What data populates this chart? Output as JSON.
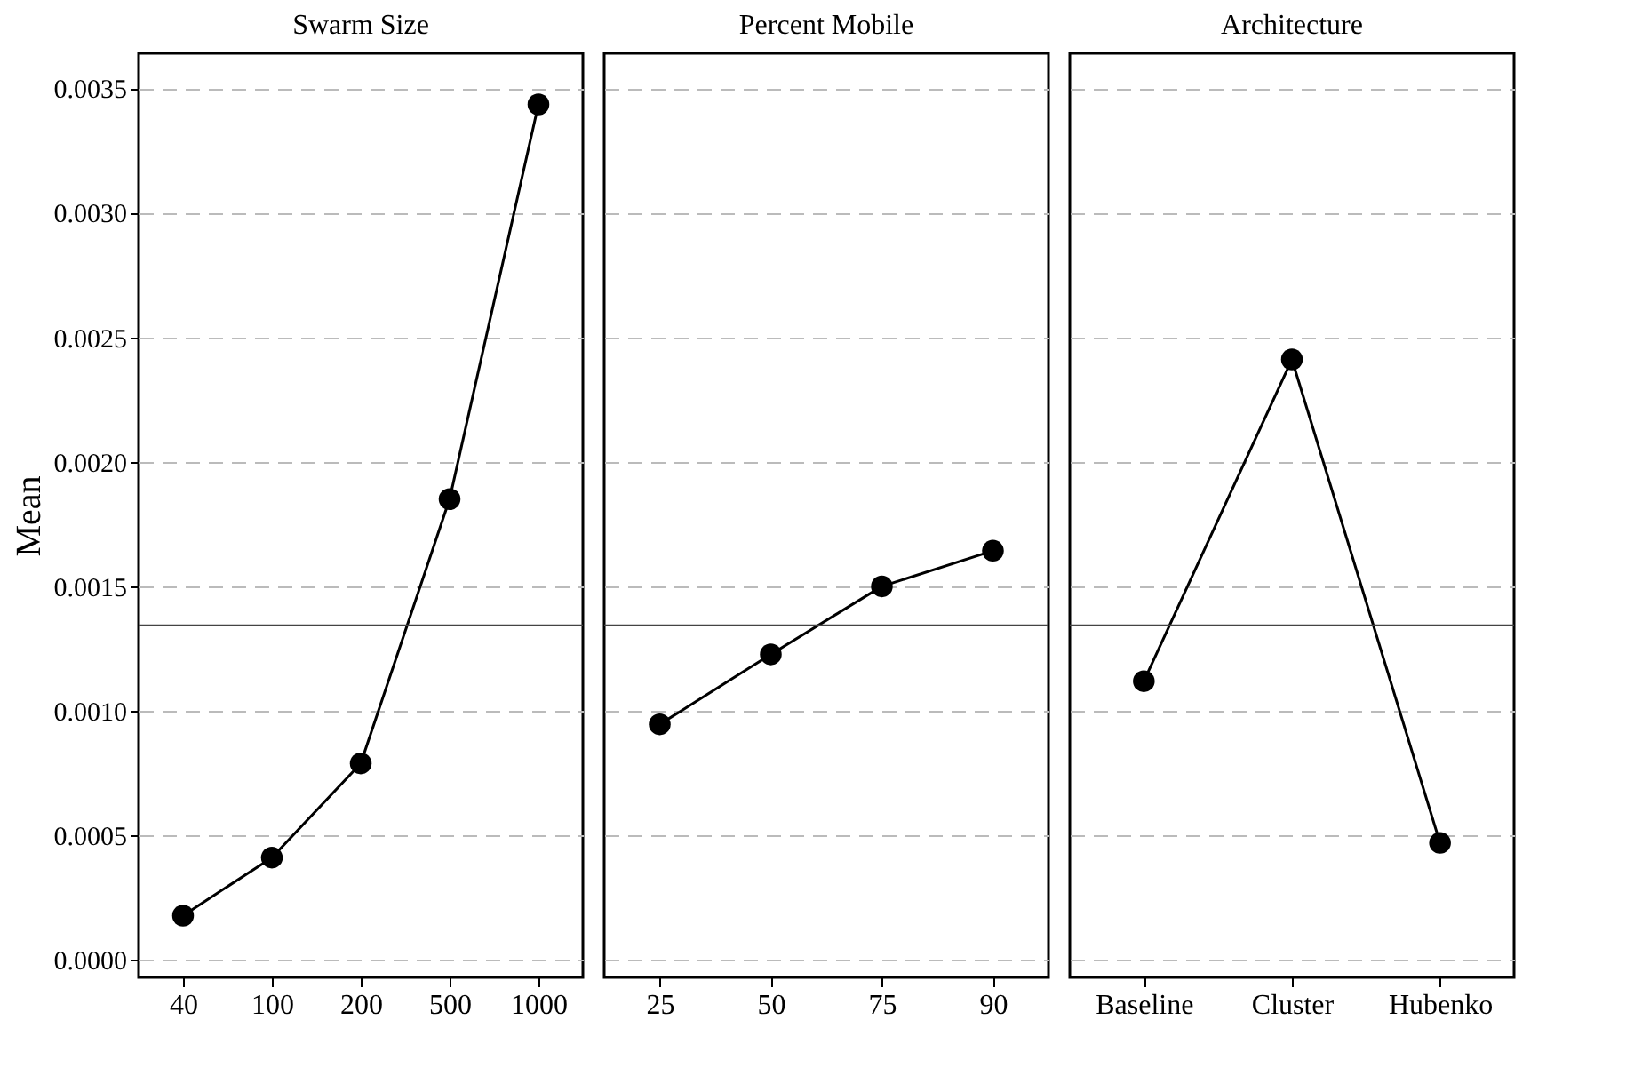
{
  "chart_data": [
    {
      "type": "line",
      "title": "Swarm Size",
      "ylabel": "Mean",
      "categories": [
        "40",
        "100",
        "200",
        "500",
        "1000"
      ],
      "series": [
        {
          "color": "#000000",
          "values": [
            0.000178,
            0.000411,
            0.000789,
            0.00185,
            0.003435
          ]
        }
      ],
      "ylim": [
        -7e-05,
        0.00364
      ],
      "yticks": [
        {
          "value": 0,
          "label": "0.0000"
        },
        {
          "value": 0.0005,
          "label": "0.0005"
        },
        {
          "value": 0.001,
          "label": "0.0010"
        },
        {
          "value": 0.0015,
          "label": "0.0015"
        },
        {
          "value": 0.002,
          "label": "0.0020"
        },
        {
          "value": 0.0025,
          "label": "0.0025"
        },
        {
          "value": 0.003,
          "label": "0.0030"
        },
        {
          "value": 0.0035,
          "label": "0.0035"
        }
      ],
      "ref_lines": [
        {
          "axis": "y",
          "value": 0.001343,
          "color": "#444444"
        }
      ],
      "grid": "y",
      "marker": "circle",
      "line_style": "solid"
    },
    {
      "type": "line",
      "title": "Percent Mobile",
      "categories": [
        "25",
        "50",
        "75",
        "90"
      ],
      "series": [
        {
          "color": "#000000",
          "values": [
            0.000946,
            0.001227,
            0.0015,
            0.001643
          ]
        }
      ],
      "ylim": [
        -7e-05,
        0.00364
      ],
      "yticks": [
        {
          "value": 0,
          "label": null
        },
        {
          "value": 0.0005,
          "label": null
        },
        {
          "value": 0.001,
          "label": null
        },
        {
          "value": 0.0015,
          "label": null
        },
        {
          "value": 0.002,
          "label": null
        },
        {
          "value": 0.0025,
          "label": null
        },
        {
          "value": 0.003,
          "label": null
        },
        {
          "value": 0.0035,
          "label": null
        }
      ],
      "ref_lines": [
        {
          "axis": "y",
          "value": 0.001343,
          "color": "#444444"
        }
      ],
      "grid": "y",
      "marker": "circle",
      "line_style": "solid",
      "tick_labels": "x"
    },
    {
      "type": "line",
      "title": "Architecture",
      "categories": [
        "Baseline",
        "Cluster",
        "Hubenko"
      ],
      "series": [
        {
          "color": "#000000",
          "values": [
            0.001119,
            0.002411,
            0.00047
          ]
        }
      ],
      "ylim": [
        -7e-05,
        0.00364
      ],
      "yticks": [
        {
          "value": 0,
          "label": null
        },
        {
          "value": 0.0005,
          "label": null
        },
        {
          "value": 0.001,
          "label": null
        },
        {
          "value": 0.0015,
          "label": null
        },
        {
          "value": 0.002,
          "label": null
        },
        {
          "value": 0.0025,
          "label": null
        },
        {
          "value": 0.003,
          "label": null
        },
        {
          "value": 0.0035,
          "label": null
        }
      ],
      "ref_lines": [
        {
          "axis": "y",
          "value": 0.001343,
          "color": "#444444"
        }
      ],
      "grid": "y",
      "marker": "circle",
      "line_style": "solid",
      "tick_labels": "x"
    }
  ]
}
